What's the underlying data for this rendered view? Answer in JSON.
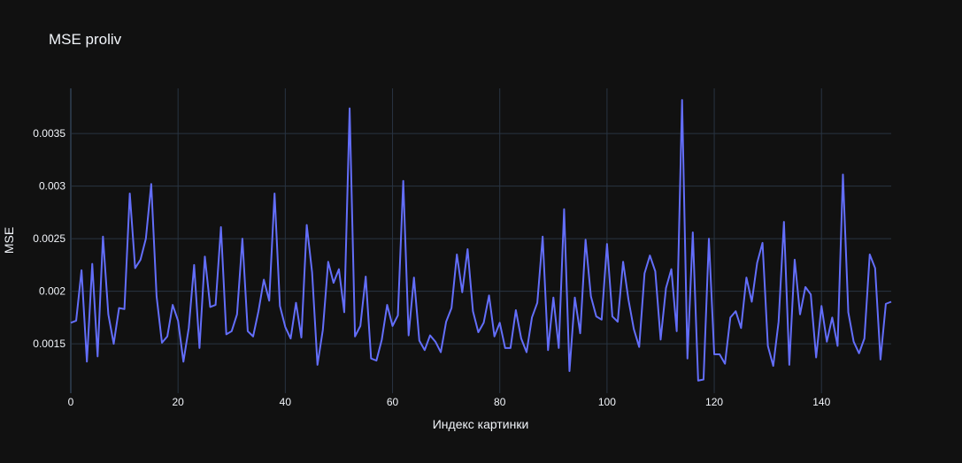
{
  "chart_data": {
    "type": "line",
    "title": "MSE proliv",
    "xlabel": "Индекс картинки",
    "ylabel": "MSE",
    "xlim": [
      0,
      153
    ],
    "ylim": [
      0.00103,
      0.00393
    ],
    "xticks": [
      0,
      20,
      40,
      60,
      80,
      100,
      120,
      140
    ],
    "xtick_labels": [
      "0",
      "20",
      "40",
      "60",
      "80",
      "100",
      "120",
      "140"
    ],
    "yticks": [
      0.0015,
      0.002,
      0.0025,
      0.003,
      0.0035
    ],
    "ytick_labels": [
      "0.0015",
      "0.002",
      "0.0025",
      "0.003",
      "0.0035"
    ],
    "grid": true,
    "series": [
      {
        "color": "#636efa",
        "x_start": 0,
        "values": [
          0.0017,
          0.00172,
          0.0022,
          0.00133,
          0.00226,
          0.00138,
          0.00252,
          0.00178,
          0.0015,
          0.00184,
          0.00183,
          0.00293,
          0.00222,
          0.0023,
          0.0025,
          0.00302,
          0.00195,
          0.00151,
          0.00157,
          0.00187,
          0.00172,
          0.00133,
          0.00165,
          0.00225,
          0.00146,
          0.00233,
          0.00185,
          0.00187,
          0.00261,
          0.00159,
          0.00162,
          0.00178,
          0.0025,
          0.00162,
          0.00157,
          0.00181,
          0.00211,
          0.00191,
          0.00293,
          0.00186,
          0.00166,
          0.00155,
          0.00189,
          0.00156,
          0.00263,
          0.00218,
          0.0013,
          0.00163,
          0.00228,
          0.00208,
          0.00221,
          0.0018,
          0.00374,
          0.00157,
          0.00167,
          0.00214,
          0.00136,
          0.00134,
          0.00154,
          0.00187,
          0.00167,
          0.00177,
          0.00305,
          0.00158,
          0.00213,
          0.00153,
          0.00144,
          0.00158,
          0.00152,
          0.00142,
          0.00171,
          0.00184,
          0.00235,
          0.00199,
          0.0024,
          0.00181,
          0.00161,
          0.0017,
          0.00196,
          0.00157,
          0.0017,
          0.00146,
          0.00146,
          0.00182,
          0.00155,
          0.00142,
          0.00175,
          0.00189,
          0.00252,
          0.00144,
          0.00194,
          0.00146,
          0.00278,
          0.00124,
          0.00194,
          0.0016,
          0.00249,
          0.00195,
          0.00176,
          0.00173,
          0.00245,
          0.00176,
          0.00171,
          0.00228,
          0.00192,
          0.00164,
          0.00147,
          0.00217,
          0.00234,
          0.00219,
          0.00154,
          0.00203,
          0.00221,
          0.00162,
          0.00382,
          0.00136,
          0.00256,
          0.00115,
          0.00116,
          0.0025,
          0.0014,
          0.0014,
          0.00131,
          0.00175,
          0.00181,
          0.00165,
          0.00213,
          0.0019,
          0.00227,
          0.00246,
          0.00148,
          0.00129,
          0.00171,
          0.00266,
          0.0013,
          0.0023,
          0.00178,
          0.00204,
          0.00197,
          0.00137,
          0.00186,
          0.00152,
          0.00175,
          0.00148,
          0.00311,
          0.0018,
          0.00152,
          0.00141,
          0.00155,
          0.00235,
          0.00222,
          0.00135,
          0.00188,
          0.0019
        ]
      }
    ]
  }
}
